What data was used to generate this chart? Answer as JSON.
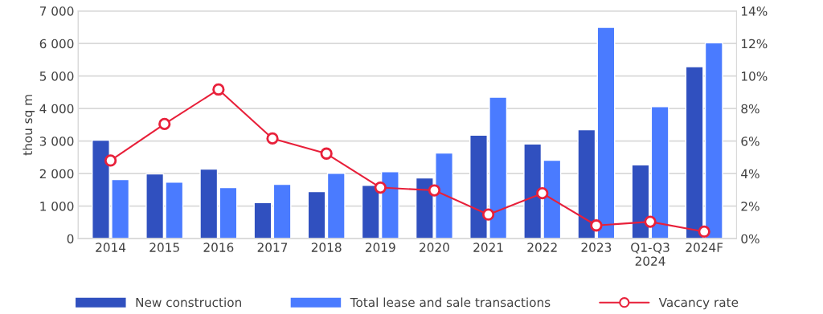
{
  "chart_data": {
    "type": "bar",
    "ylabel": "thou sq m",
    "categories": [
      "2014",
      "2015",
      "2016",
      "2017",
      "2018",
      "2019",
      "2020",
      "2021",
      "2022",
      "2023",
      "Q1-Q3\n2024",
      "2024F"
    ],
    "series": [
      {
        "name": "New construction",
        "color": "#3050bf",
        "values": [
          3030,
          1990,
          2140,
          1110,
          1450,
          1640,
          1870,
          3180,
          2910,
          3350,
          2270,
          5290
        ]
      },
      {
        "name": "Total lease and sale transactions",
        "color": "#4a7bff",
        "values": [
          1820,
          1740,
          1570,
          1670,
          2010,
          2060,
          2630,
          4350,
          2410,
          6500,
          4060,
          6020
        ]
      },
      {
        "name": "Vacancy rate",
        "type": "line",
        "axis": "y2",
        "color": "#e8203a",
        "marker": "circle",
        "values": [
          4.8,
          7.05,
          9.17,
          6.16,
          5.23,
          3.14,
          2.97,
          1.48,
          2.79,
          0.81,
          1.04,
          0.43
        ]
      }
    ],
    "ylim": [
      0,
      7000
    ],
    "yticks": [
      0,
      {
        "value": 1000,
        "label": "1 000"
      },
      {
        "value": 2000,
        "label": "2 000"
      },
      {
        "value": 3000,
        "label": "3 000"
      },
      {
        "value": 4000,
        "label": "4 000"
      },
      {
        "value": 5000,
        "label": "5 000"
      },
      {
        "value": 6000,
        "label": "6 000"
      },
      {
        "value": 7000,
        "label": "7 000"
      }
    ],
    "y2lim": [
      0,
      14
    ],
    "y2ticks": [
      {
        "value": 0,
        "label": "0%"
      },
      {
        "value": 2,
        "label": "2%"
      },
      {
        "value": 4,
        "label": "4%"
      },
      {
        "value": 6,
        "label": "6%"
      },
      {
        "value": 8,
        "label": "8%"
      },
      {
        "value": 10,
        "label": "10%"
      },
      {
        "value": 12,
        "label": "12%"
      },
      {
        "value": 14,
        "label": "14%"
      }
    ],
    "grid": "y",
    "legend": "bottom"
  }
}
